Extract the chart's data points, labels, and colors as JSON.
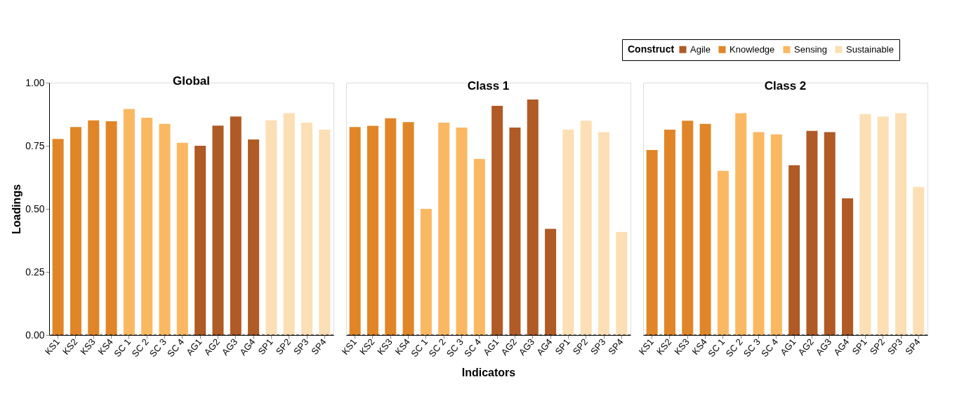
{
  "chart_data": [
    {
      "type": "bar",
      "title": "Global",
      "ylabel": "Loadings",
      "legend": "top right",
      "legend_title": "Construct",
      "categories": [
        "KS1",
        "KS2",
        "KS3",
        "KS4",
        "SC 1",
        "SC 2",
        "SC 3",
        "SC 4",
        "AG1",
        "AG2",
        "AG3",
        "AG4",
        "SP1",
        "SP2",
        "SP3",
        "SP4"
      ],
      "ylim": [
        0,
        1
      ],
      "yticks": [
        {
          "value": 0,
          "label": "0.00"
        },
        {
          "value": 0.25,
          "label": "0.25"
        },
        {
          "value": 0.5,
          "label": "0.50"
        },
        {
          "value": 0.75,
          "label": "0.75"
        },
        {
          "value": 1,
          "label": "1.00"
        }
      ],
      "ref_lines": [
        {
          "axis": "y",
          "value": 0,
          "color": "#000000",
          "line_style": "dashed"
        }
      ],
      "series": [
        {
          "name": "Agile",
          "color": "#b05a26",
          "values": [
            null,
            null,
            null,
            null,
            null,
            null,
            null,
            null,
            0.75,
            0.83,
            0.866,
            0.775,
            null,
            null,
            null,
            null
          ]
        },
        {
          "name": "Knowledge",
          "color": "#e08628",
          "values": [
            0.777,
            0.824,
            0.851,
            0.847,
            null,
            null,
            null,
            null,
            null,
            null,
            null,
            null,
            null,
            null,
            null,
            null
          ]
        },
        {
          "name": "Sensing",
          "color": "#fbb862",
          "values": [
            null,
            null,
            null,
            null,
            0.896,
            0.861,
            0.837,
            0.762,
            null,
            null,
            null,
            null,
            null,
            null,
            null,
            null
          ]
        },
        {
          "name": "Sustainable",
          "color": "#fcdfb4",
          "values": [
            null,
            null,
            null,
            null,
            null,
            null,
            null,
            null,
            null,
            null,
            null,
            null,
            0.851,
            0.879,
            0.842,
            0.814
          ]
        }
      ]
    },
    {
      "type": "bar",
      "title": "Class 1",
      "xlabel": "Indicators",
      "tick_labels": "x",
      "categories": [
        "KS1",
        "KS2",
        "KS3",
        "KS4",
        "SC 1",
        "SC 2",
        "SC 3",
        "SC 4",
        "AG1",
        "AG2",
        "AG3",
        "AG4",
        "SP1",
        "SP2",
        "SP3",
        "SP4"
      ],
      "ylim": [
        0,
        1
      ],
      "ref_lines": [
        {
          "axis": "y",
          "value": 0,
          "color": "#000000",
          "line_style": "dashed"
        }
      ],
      "series": [
        {
          "name": "Agile",
          "color": "#b05a26",
          "values": [
            null,
            null,
            null,
            null,
            null,
            null,
            null,
            null,
            0.908,
            0.822,
            0.933,
            0.421,
            null,
            null,
            null,
            null
          ]
        },
        {
          "name": "Knowledge",
          "color": "#e08628",
          "values": [
            0.824,
            0.829,
            0.859,
            0.844,
            null,
            null,
            null,
            null,
            null,
            null,
            null,
            null,
            null,
            null,
            null,
            null
          ]
        },
        {
          "name": "Sensing",
          "color": "#fbb862",
          "values": [
            null,
            null,
            null,
            null,
            0.5,
            0.842,
            0.822,
            0.698,
            null,
            null,
            null,
            null,
            null,
            null,
            null,
            null
          ]
        },
        {
          "name": "Sustainable",
          "color": "#fcdfb4",
          "values": [
            null,
            null,
            null,
            null,
            null,
            null,
            null,
            null,
            null,
            null,
            null,
            null,
            0.814,
            0.849,
            0.804,
            0.408
          ]
        }
      ]
    },
    {
      "type": "bar",
      "title": "Class 2",
      "tick_labels": "x",
      "categories": [
        "KS1",
        "KS2",
        "KS3",
        "KS4",
        "SC 1",
        "SC 2",
        "SC 3",
        "SC 4",
        "AG1",
        "AG2",
        "AG3",
        "AG4",
        "SP1",
        "SP2",
        "SP3",
        "SP4"
      ],
      "ylim": [
        0,
        1
      ],
      "ref_lines": [
        {
          "axis": "y",
          "value": 0,
          "color": "#000000",
          "line_style": "dashed"
        }
      ],
      "series": [
        {
          "name": "Agile",
          "color": "#b05a26",
          "values": [
            null,
            null,
            null,
            null,
            null,
            null,
            null,
            null,
            0.673,
            0.809,
            0.804,
            0.542,
            null,
            null,
            null,
            null
          ]
        },
        {
          "name": "Knowledge",
          "color": "#e08628",
          "values": [
            0.733,
            0.814,
            0.849,
            0.837,
            null,
            null,
            null,
            null,
            null,
            null,
            null,
            null,
            null,
            null,
            null,
            null
          ]
        },
        {
          "name": "Sensing",
          "color": "#fbb862",
          "values": [
            null,
            null,
            null,
            null,
            0.651,
            0.879,
            0.804,
            0.795,
            null,
            null,
            null,
            null,
            null,
            null,
            null,
            null
          ]
        },
        {
          "name": "Sustainable",
          "color": "#fcdfb4",
          "values": [
            null,
            null,
            null,
            null,
            null,
            null,
            null,
            null,
            null,
            null,
            null,
            null,
            0.876,
            0.866,
            0.879,
            0.587
          ]
        }
      ]
    }
  ]
}
